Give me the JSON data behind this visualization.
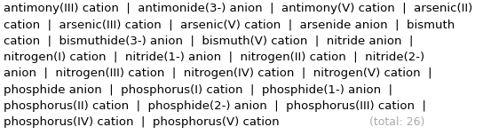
{
  "lines": [
    "antimony(III) cation  |  antimonide(3-) anion  |  antimony(V) cation  |  arsenic(II)",
    "cation  |  arsenic(III) cation  |  arsenic(V) cation  |  arsenide anion  |  bismuth",
    "cation  |  bismuthide(3-) anion  |  bismuth(V) cation  |  nitride anion  |",
    "nitrogen(I) cation  |  nitride(1-) anion  |  nitrogen(II) cation  |  nitride(2-)",
    "anion  |  nitrogen(III) cation  |  nitrogen(IV) cation  |  nitrogen(V) cation  |",
    "phosphide anion  |  phosphorus(I) cation  |  phosphide(1-) anion  |",
    "phosphorus(II) cation  |  phosphide(2-) anion  |  phosphorus(III) cation  |",
    "phosphorus(IV) cation  |  phosphorus(V) cation"
  ],
  "total_str": "(total: 26)",
  "main_color": "#000000",
  "total_color": "#aaaaaa",
  "background_color": "#ffffff",
  "font_size": 9.5,
  "total_font_size": 9.0,
  "font_family": "DejaVu Sans"
}
